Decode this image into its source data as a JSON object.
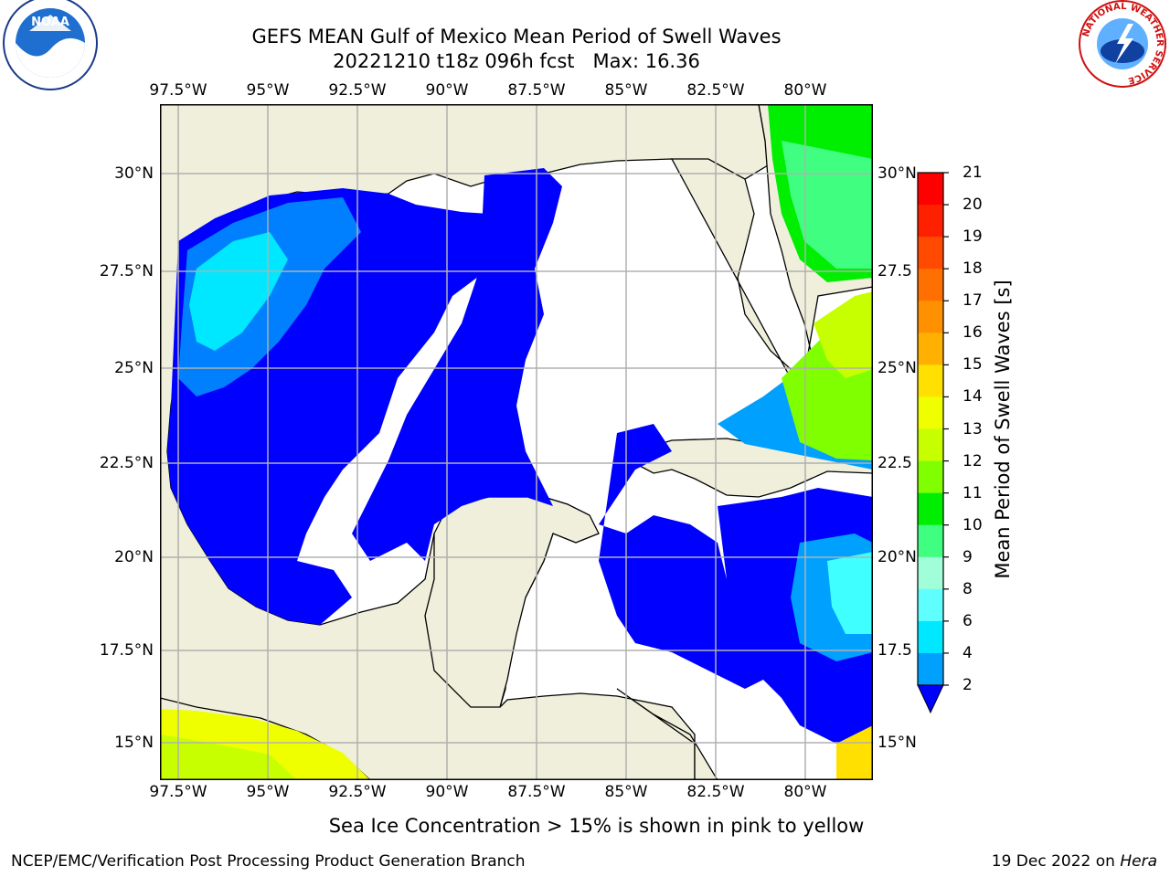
{
  "title": {
    "line1": "GEFS MEAN Gulf of Mexico Mean Period of Swell Waves",
    "run": "20221210 t18z 096h fcst",
    "max": "Max: 16.36"
  },
  "map": {
    "lon_labels": [
      "97.5°W",
      "95°W",
      "92.5°W",
      "90°W",
      "87.5°W",
      "85°W",
      "82.5°W",
      "80°W"
    ],
    "lat_labels_left": [
      "30°N",
      "27.5°N",
      "25°N",
      "22.5°N",
      "20°N",
      "17.5°N",
      "15°N"
    ],
    "lat_labels_right": [
      "30°N",
      "27.5",
      "25°N",
      "22.5",
      "20°N",
      "17.5",
      "15°N"
    ],
    "land_color": "#efefdc",
    "grid_color": "#b0b0b0"
  },
  "colorbar": {
    "title": "Mean Period of Swell Waves [s]",
    "ticks": [
      "21",
      "20",
      "19",
      "18",
      "17",
      "16",
      "15",
      "14",
      "13",
      "12",
      "11",
      "10",
      "9",
      "8",
      "6",
      "4",
      "2"
    ],
    "colors": [
      "#ff0000",
      "#ff2000",
      "#ff4a00",
      "#ff7000",
      "#ff9000",
      "#ffb000",
      "#ffe000",
      "#f0ff00",
      "#c8ff00",
      "#80ff00",
      "#00ee00",
      "#40ff80",
      "#a0ffd8",
      "#60ffff",
      "#00e8ff",
      "#00a0ff",
      "#0000ff"
    ],
    "extend_color": "#0000ff"
  },
  "footer": {
    "note": "Sea Ice Concentration > 15% is shown in pink to yellow",
    "credit_left": "NCEP/EMC/Verification Post Processing Product Generation Branch",
    "credit_date": "19 Dec 2022 on",
    "credit_host": "Hera"
  },
  "logos": {
    "left": "noaa-logo-icon",
    "right": "nws-logo-icon",
    "noaa_text": "NOAA",
    "nws_ring_text": "NATIONAL WEATHER SERVICE"
  }
}
